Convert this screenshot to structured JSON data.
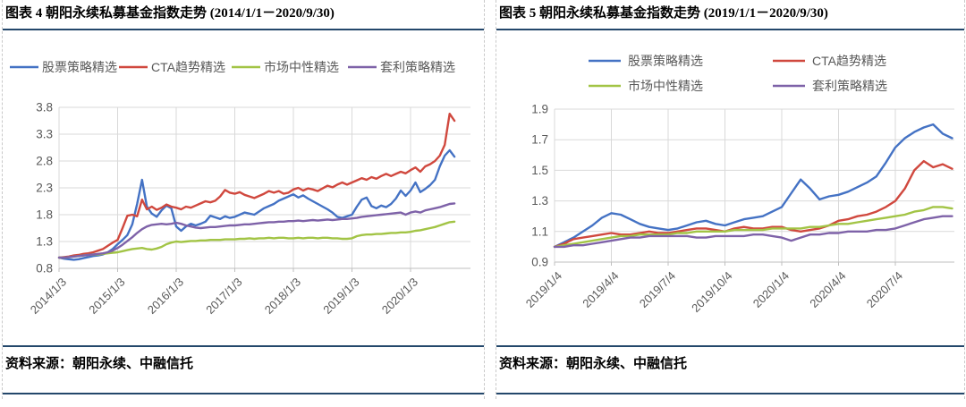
{
  "colors": {
    "navy_rule": "#24476B",
    "gridline": "#D9D9D9",
    "axis_line": "#BFBFBF",
    "tick_label": "#595959",
    "series_blue": "#4472C4",
    "series_red": "#D0483E",
    "series_green": "#A2C445",
    "series_purple": "#7E62A8"
  },
  "panels": [
    {
      "title": "图表 4  朝阳永续私募基金指数走势 (2014/1/1－2020/9/30)",
      "source": "资料来源：朝阳永续、中融信托"
    },
    {
      "title": "图表 5  朝阳永续私募基金指数走势 (2019/1/1－2020/9/30)",
      "source": "资料来源：朝阳永续、中融信托"
    }
  ],
  "chart_data": [
    {
      "type": "line",
      "title": "朝阳永续私募基金指数走势 (2014/1/1－2020/9/30)",
      "legend_position": "top-single-row",
      "grid": true,
      "x_tick_labels": [
        "2014/1/3",
        "2015/1/3",
        "2016/1/3",
        "2017/1/3",
        "2018/1/3",
        "2019/1/3",
        "2020/1/3"
      ],
      "x_tick_months": [
        0,
        12,
        24,
        36,
        48,
        60,
        72
      ],
      "x_end_month": 81,
      "ylim": [
        0.8,
        3.8
      ],
      "yticks": [
        0.8,
        1.3,
        1.8,
        2.3,
        2.8,
        3.3,
        3.8
      ],
      "series": [
        {
          "name": "股票策略精选",
          "color": "#4472C4",
          "values": [
            1.0,
            0.98,
            0.97,
            0.96,
            0.97,
            0.99,
            1.01,
            1.03,
            1.04,
            1.06,
            1.1,
            1.16,
            1.25,
            1.33,
            1.42,
            1.62,
            2.0,
            2.45,
            1.95,
            1.82,
            1.76,
            1.88,
            1.97,
            1.92,
            1.58,
            1.5,
            1.58,
            1.63,
            1.6,
            1.63,
            1.67,
            1.78,
            1.75,
            1.72,
            1.77,
            1.74,
            1.76,
            1.8,
            1.84,
            1.82,
            1.8,
            1.86,
            1.92,
            1.96,
            2.0,
            2.06,
            2.1,
            2.14,
            2.18,
            2.12,
            2.16,
            2.1,
            2.05,
            2.0,
            1.95,
            1.9,
            1.84,
            1.76,
            1.74,
            1.77,
            1.8,
            1.95,
            2.08,
            2.12,
            1.96,
            1.92,
            1.97,
            1.94,
            2.0,
            2.1,
            2.25,
            2.15,
            2.25,
            2.4,
            2.22,
            2.28,
            2.35,
            2.45,
            2.7,
            2.9,
            3.0,
            2.88
          ]
        },
        {
          "name": "CTA趋势精选",
          "color": "#D0483E",
          "values": [
            1.0,
            1.01,
            1.02,
            1.04,
            1.05,
            1.07,
            1.08,
            1.1,
            1.13,
            1.16,
            1.22,
            1.28,
            1.33,
            1.55,
            1.78,
            1.8,
            1.77,
            2.08,
            1.9,
            1.95,
            1.89,
            1.93,
            1.99,
            1.95,
            1.93,
            1.9,
            1.95,
            1.93,
            1.97,
            2.01,
            2.05,
            2.03,
            2.06,
            2.14,
            2.26,
            2.21,
            2.19,
            2.22,
            2.17,
            2.14,
            2.11,
            2.15,
            2.19,
            2.24,
            2.21,
            2.24,
            2.19,
            2.21,
            2.27,
            2.3,
            2.25,
            2.29,
            2.27,
            2.24,
            2.29,
            2.34,
            2.31,
            2.36,
            2.4,
            2.36,
            2.4,
            2.44,
            2.48,
            2.45,
            2.5,
            2.47,
            2.52,
            2.56,
            2.52,
            2.56,
            2.6,
            2.57,
            2.63,
            2.68,
            2.6,
            2.7,
            2.74,
            2.8,
            2.9,
            3.1,
            3.68,
            3.55
          ]
        },
        {
          "name": "市场中性精选",
          "color": "#A2C445",
          "values": [
            1.0,
            1.0,
            1.01,
            1.02,
            1.03,
            1.04,
            1.05,
            1.06,
            1.06,
            1.07,
            1.08,
            1.09,
            1.1,
            1.12,
            1.14,
            1.16,
            1.17,
            1.18,
            1.16,
            1.15,
            1.17,
            1.2,
            1.25,
            1.28,
            1.3,
            1.29,
            1.3,
            1.31,
            1.31,
            1.32,
            1.32,
            1.33,
            1.33,
            1.33,
            1.34,
            1.34,
            1.34,
            1.35,
            1.35,
            1.36,
            1.35,
            1.36,
            1.36,
            1.37,
            1.36,
            1.37,
            1.37,
            1.36,
            1.36,
            1.37,
            1.36,
            1.37,
            1.37,
            1.36,
            1.37,
            1.37,
            1.36,
            1.36,
            1.35,
            1.35,
            1.36,
            1.4,
            1.42,
            1.43,
            1.43,
            1.44,
            1.44,
            1.45,
            1.46,
            1.46,
            1.47,
            1.47,
            1.48,
            1.5,
            1.51,
            1.53,
            1.55,
            1.57,
            1.6,
            1.63,
            1.66,
            1.67
          ]
        },
        {
          "name": "套利策略精选",
          "color": "#7E62A8",
          "values": [
            1.0,
            1.0,
            1.01,
            1.02,
            1.03,
            1.04,
            1.05,
            1.06,
            1.07,
            1.08,
            1.1,
            1.13,
            1.18,
            1.24,
            1.31,
            1.38,
            1.46,
            1.53,
            1.58,
            1.61,
            1.62,
            1.63,
            1.62,
            1.63,
            1.65,
            1.63,
            1.6,
            1.58,
            1.56,
            1.55,
            1.56,
            1.57,
            1.57,
            1.58,
            1.59,
            1.6,
            1.6,
            1.61,
            1.62,
            1.62,
            1.63,
            1.64,
            1.65,
            1.66,
            1.66,
            1.67,
            1.67,
            1.68,
            1.68,
            1.69,
            1.68,
            1.69,
            1.7,
            1.69,
            1.7,
            1.71,
            1.7,
            1.71,
            1.72,
            1.72,
            1.73,
            1.74,
            1.76,
            1.77,
            1.78,
            1.79,
            1.8,
            1.81,
            1.82,
            1.83,
            1.84,
            1.8,
            1.84,
            1.86,
            1.84,
            1.88,
            1.9,
            1.92,
            1.94,
            1.97,
            2.0,
            2.01
          ]
        }
      ]
    },
    {
      "type": "line",
      "title": "朝阳永续私募基金指数走势 (2019/1/1－2020/9/30)",
      "legend_position": "top-two-rows",
      "grid": true,
      "x_tick_labels": [
        "2019/1/4",
        "2019/4/4",
        "2019/7/4",
        "2019/10/4",
        "2020/1/4",
        "2020/4/4",
        "2020/7/4"
      ],
      "x_tick_months": [
        0,
        3,
        6,
        9,
        12,
        15,
        18
      ],
      "x_end_month": 21,
      "ylim": [
        0.9,
        1.9
      ],
      "yticks": [
        0.9,
        1.1,
        1.3,
        1.5,
        1.7,
        1.9
      ],
      "series": [
        {
          "name": "股票策略精选",
          "color": "#4472C4",
          "values": [
            1.0,
            1.03,
            1.06,
            1.1,
            1.14,
            1.19,
            1.22,
            1.21,
            1.18,
            1.15,
            1.13,
            1.12,
            1.11,
            1.12,
            1.14,
            1.16,
            1.17,
            1.15,
            1.14,
            1.16,
            1.18,
            1.19,
            1.2,
            1.23,
            1.26,
            1.35,
            1.44,
            1.38,
            1.31,
            1.33,
            1.34,
            1.36,
            1.39,
            1.42,
            1.46,
            1.55,
            1.65,
            1.71,
            1.75,
            1.78,
            1.8,
            1.74,
            1.71
          ]
        },
        {
          "name": "CTA趋势精选",
          "color": "#D0483E",
          "values": [
            1.0,
            1.02,
            1.05,
            1.06,
            1.07,
            1.08,
            1.09,
            1.08,
            1.08,
            1.09,
            1.1,
            1.09,
            1.09,
            1.1,
            1.11,
            1.12,
            1.12,
            1.11,
            1.1,
            1.12,
            1.13,
            1.12,
            1.12,
            1.13,
            1.13,
            1.11,
            1.1,
            1.11,
            1.12,
            1.14,
            1.17,
            1.18,
            1.2,
            1.21,
            1.23,
            1.26,
            1.3,
            1.38,
            1.5,
            1.56,
            1.52,
            1.54,
            1.51
          ]
        },
        {
          "name": "市场中性精选",
          "color": "#A2C445",
          "values": [
            1.0,
            1.01,
            1.02,
            1.03,
            1.04,
            1.05,
            1.06,
            1.07,
            1.07,
            1.08,
            1.08,
            1.08,
            1.08,
            1.09,
            1.09,
            1.1,
            1.1,
            1.1,
            1.1,
            1.11,
            1.11,
            1.11,
            1.11,
            1.12,
            1.12,
            1.12,
            1.12,
            1.13,
            1.13,
            1.14,
            1.15,
            1.15,
            1.16,
            1.17,
            1.18,
            1.19,
            1.2,
            1.21,
            1.23,
            1.24,
            1.26,
            1.26,
            1.25
          ]
        },
        {
          "name": "套利策略精选",
          "color": "#7E62A8",
          "values": [
            1.0,
            1.0,
            1.01,
            1.01,
            1.02,
            1.03,
            1.04,
            1.05,
            1.06,
            1.06,
            1.07,
            1.07,
            1.07,
            1.07,
            1.07,
            1.06,
            1.06,
            1.07,
            1.07,
            1.07,
            1.07,
            1.08,
            1.08,
            1.07,
            1.06,
            1.04,
            1.06,
            1.08,
            1.08,
            1.09,
            1.09,
            1.1,
            1.1,
            1.1,
            1.11,
            1.11,
            1.12,
            1.14,
            1.16,
            1.18,
            1.19,
            1.2,
            1.2
          ]
        }
      ]
    }
  ]
}
